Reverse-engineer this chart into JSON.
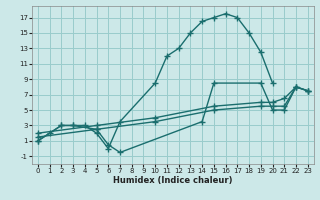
{
  "xlabel": "Humidex (Indice chaleur)",
  "bg_color": "#cce8e8",
  "grid_color": "#99cccc",
  "line_color": "#1a6e6e",
  "xlim": [
    -0.5,
    23.5
  ],
  "ylim": [
    -2,
    18.5
  ],
  "xticks": [
    0,
    1,
    2,
    3,
    4,
    5,
    6,
    7,
    8,
    9,
    10,
    11,
    12,
    13,
    14,
    15,
    16,
    17,
    18,
    19,
    20,
    21,
    22,
    23
  ],
  "yticks": [
    -1,
    1,
    3,
    5,
    7,
    9,
    11,
    13,
    15,
    17
  ],
  "series1_x": [
    0,
    1,
    2,
    3,
    4,
    5,
    6,
    7,
    10,
    11,
    12,
    13,
    14,
    15,
    16,
    17,
    18,
    19,
    20
  ],
  "series1_y": [
    1,
    2,
    3,
    3,
    3,
    2,
    0,
    3.5,
    8.5,
    12,
    13,
    15,
    16.5,
    17,
    17.5,
    17,
    15,
    12.5,
    8.5
  ],
  "series2_x": [
    0,
    2,
    3,
    5,
    6,
    7,
    14,
    15,
    19,
    20,
    21,
    22,
    23
  ],
  "series2_y": [
    1,
    3,
    3,
    2.5,
    0.5,
    -0.5,
    3.5,
    8.5,
    8.5,
    5,
    5,
    8,
    7.5
  ],
  "series3_x": [
    0,
    5,
    10,
    15,
    19,
    20,
    21,
    22,
    23
  ],
  "series3_y": [
    2,
    3,
    4,
    5.5,
    6,
    6,
    6.5,
    8,
    7.5
  ],
  "series4_x": [
    0,
    5,
    10,
    15,
    19,
    20,
    21,
    22,
    23
  ],
  "series4_y": [
    1.5,
    2.5,
    3.5,
    5,
    5.5,
    5.5,
    5.5,
    8,
    7.5
  ]
}
